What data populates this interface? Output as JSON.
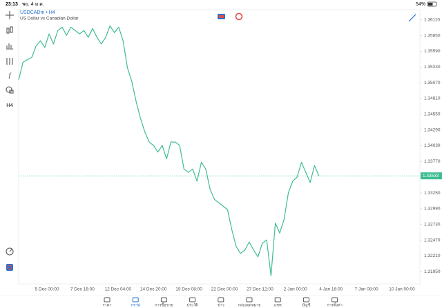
{
  "status_bar": {
    "time": "23:13",
    "date": "พฤ. 4 ม.ค.",
    "battery": "54%"
  },
  "toolbar": {
    "timeframe": "H4"
  },
  "chart_data": {
    "type": "line",
    "symbol": "USDCADm • H4",
    "title": "US Dollar vs Canadian Dollar",
    "color": "#3dbd8f",
    "values": [
      1.35118,
      1.35408,
      1.35452,
      1.35486,
      1.35675,
      1.35764,
      1.35653,
      1.35876,
      1.35709,
      1.35932,
      1.35987,
      1.35854,
      1.35987,
      1.35932,
      1.35876,
      1.35932,
      1.3582,
      1.35965,
      1.3582,
      1.35709,
      1.3582,
      1.3601,
      1.35898,
      1.35987,
      1.35764,
      1.35318,
      1.35095,
      1.34761,
      1.34482,
      1.34259,
      1.34092,
      1.34036,
      1.33925,
      1.34036,
      1.33813,
      1.34092,
      1.34092,
      1.34036,
      1.33646,
      1.3359,
      1.33646,
      1.33445,
      1.33757,
      1.33646,
      1.33311,
      1.33144,
      1.33088,
      1.33033,
      1.32977,
      1.32642,
      1.32364,
      1.32252,
      1.32308,
      1.32442,
      1.32308,
      1.32196,
      1.32419,
      1.32475,
      1.31884,
      1.32754,
      1.32587,
      1.3281,
      1.33256,
      1.33445,
      1.33512,
      1.33757,
      1.3359,
      1.33423,
      1.33702,
      1.33533
    ],
    "current_price": 1.33533,
    "ylim": [
      1.31749,
      1.36277
    ],
    "yticks": [
      {
        "value": 1.3611,
        "label": "1.36110"
      },
      {
        "value": 1.3585,
        "label": "1.35850"
      },
      {
        "value": 1.3559,
        "label": "1.35590"
      },
      {
        "value": 1.3533,
        "label": "1.35330"
      },
      {
        "value": 1.3507,
        "label": "1.35070"
      },
      {
        "value": 1.3481,
        "label": "1.34810"
      },
      {
        "value": 1.3455,
        "label": "1.34550"
      },
      {
        "value": 1.3429,
        "label": "1.34290"
      },
      {
        "value": 1.3403,
        "label": "1.34030"
      },
      {
        "value": 1.3377,
        "label": "1.33770"
      },
      {
        "value": 1.3351,
        "label": "1.33510"
      },
      {
        "value": 1.3325,
        "label": "1.33250"
      },
      {
        "value": 1.3299,
        "label": "1.32990"
      },
      {
        "value": 1.3273,
        "label": "1.32730"
      },
      {
        "value": 1.3247,
        "label": "1.32470"
      },
      {
        "value": 1.3221,
        "label": "1.32210"
      },
      {
        "value": 1.3195,
        "label": "1.31950"
      }
    ],
    "xtick_labels": [
      "5 Dec 00:00",
      "7 Dec 16:00",
      "12 Dec 04:00",
      "14 Dec 20:00",
      "19 Dec 08:00",
      "22 Dec 00:00",
      "27 Dec 12:00",
      "2 Jan 00:00",
      "4 Jan 16:00",
      "7 Jan 08:00",
      "10 Jan 00:00"
    ]
  },
  "nav": {
    "items": [
      "ราคา",
      "กราฟ",
      "การซื้อขาย",
      "ประวัติ",
      "ข่าว",
      "กล่องจดหมาย",
      "แชท",
      "บัญชี",
      "การตั้งค่า"
    ],
    "active": 1
  }
}
